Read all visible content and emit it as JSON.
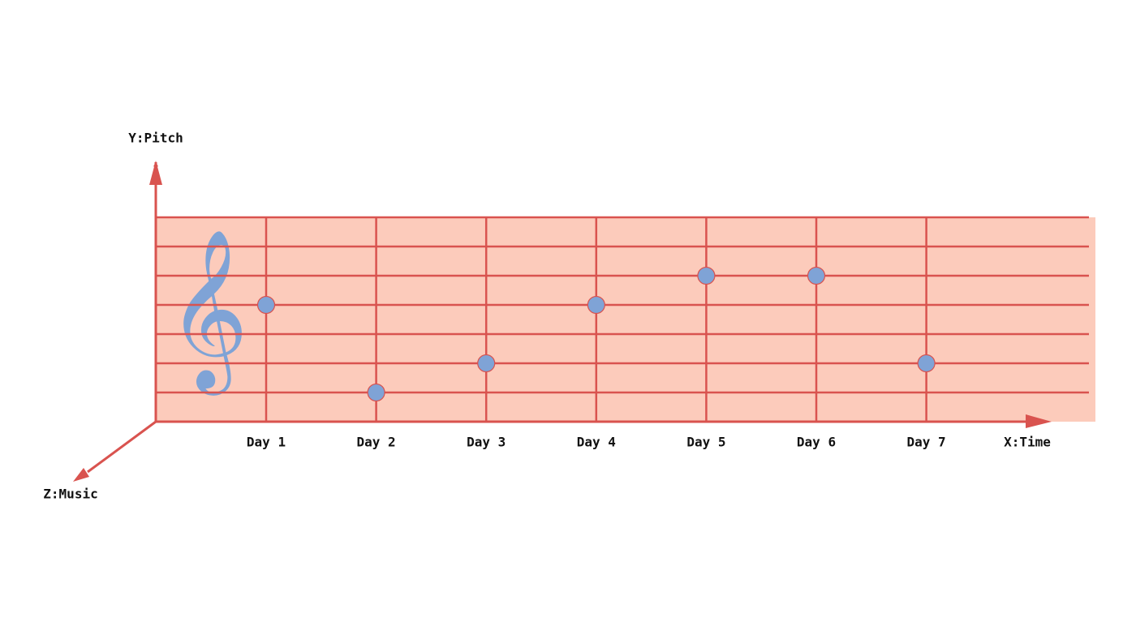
{
  "chart_data": {
    "type": "note",
    "x_label": "X:Time",
    "y_label": "Y:Pitch",
    "z_label": "Z:Music",
    "categories": [
      "Day 1",
      "Day 2",
      "Day 3",
      "Day 4",
      "Day 5",
      "Day 6",
      "Day 7"
    ],
    "values": [
      4,
      1,
      2,
      4,
      5,
      5,
      2
    ],
    "color": "#7fa3d6",
    "ylim": [
      0,
      7
    ],
    "yticks": [
      1,
      2,
      3,
      4,
      5,
      6,
      7
    ],
    "grid": true
  }
}
